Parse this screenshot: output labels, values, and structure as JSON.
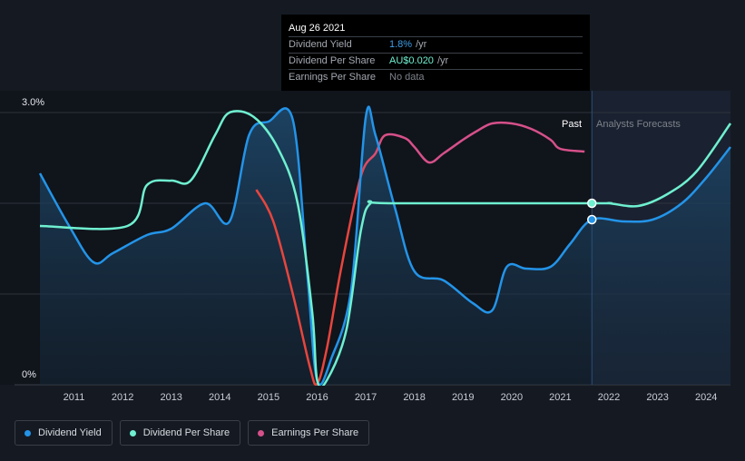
{
  "tooltip": {
    "date": "Aug 26 2021",
    "rows": [
      {
        "label": "Dividend Yield",
        "value": "1.8%",
        "unit": "/yr"
      },
      {
        "label": "Dividend Per Share",
        "value": "AU$0.020",
        "unit": "/yr"
      },
      {
        "label": "Earnings Per Share",
        "value": "No data",
        "unit": ""
      }
    ]
  },
  "colors": {
    "yield": "#2394e8",
    "dps": "#6ff0d0",
    "eps_pos": "#d6508a",
    "eps_neg": "#e8453d",
    "background": "#151a22"
  },
  "legend": [
    {
      "label": "Dividend Yield",
      "color": "#2394e8"
    },
    {
      "label": "Dividend Per Share",
      "color": "#6ff0d0"
    },
    {
      "label": "Earnings Per Share",
      "color": "#d6508a"
    }
  ],
  "chart_data": {
    "type": "line",
    "ylim": [
      0,
      3.0
    ],
    "y_tick_labels": [
      "3.0%",
      "0%"
    ],
    "xlim": [
      2010.3,
      2024.5
    ],
    "x_ticks": [
      2011,
      2012,
      2013,
      2014,
      2015,
      2016,
      2017,
      2018,
      2019,
      2020,
      2021,
      2022,
      2023,
      2024
    ],
    "past_label": "Past",
    "forecast_label": "Analysts Forecasts",
    "past_forecast_boundary": 2021.65,
    "series": [
      {
        "name": "Dividend Yield",
        "x": [
          2010.3,
          2010.9,
          2011.4,
          2011.8,
          2012.5,
          2013.0,
          2013.7,
          2014.2,
          2014.6,
          2015.0,
          2015.5,
          2015.8,
          2016.0,
          2016.3,
          2016.7,
          2017.0,
          2017.2,
          2017.6,
          2018.0,
          2018.6,
          2019.2,
          2019.6,
          2019.9,
          2020.3,
          2020.8,
          2021.2,
          2021.65,
          2022.3,
          2022.9,
          2023.5,
          2024.0,
          2024.5
        ],
        "y": [
          2.33,
          1.75,
          1.35,
          1.45,
          1.65,
          1.72,
          2.0,
          1.8,
          2.75,
          2.9,
          2.92,
          1.2,
          0.05,
          0.3,
          1.05,
          2.95,
          2.75,
          1.95,
          1.25,
          1.15,
          0.9,
          0.82,
          1.3,
          1.28,
          1.3,
          1.55,
          1.82,
          1.8,
          1.82,
          2.0,
          2.28,
          2.62
        ]
      },
      {
        "name": "Dividend Per Share",
        "x": [
          2010.3,
          2012.1,
          2012.5,
          2013.0,
          2013.4,
          2013.9,
          2014.2,
          2014.7,
          2015.2,
          2015.6,
          2015.9,
          2016.0,
          2016.2,
          2016.6,
          2016.9,
          2017.1,
          2017.5,
          2021.65,
          2022.0,
          2022.6,
          2023.2,
          2023.8,
          2024.5
        ],
        "y": [
          1.75,
          1.75,
          2.2,
          2.25,
          2.25,
          2.75,
          3.0,
          2.95,
          2.6,
          2.0,
          0.8,
          0.05,
          0.05,
          0.6,
          1.7,
          2.0,
          2.0,
          2.0,
          2.0,
          1.97,
          2.1,
          2.35,
          2.88
        ]
      },
      {
        "name": "Earnings Per Share",
        "x": [
          2014.75,
          2015.1,
          2015.5,
          2015.85,
          2016.0,
          2016.2,
          2016.5,
          2016.9,
          2017.2,
          2017.4,
          2017.8,
          2018.0,
          2018.3,
          2018.6,
          2019.0,
          2019.3,
          2019.6,
          2020.0,
          2020.4,
          2020.8,
          2021.0,
          2021.5
        ],
        "y": [
          2.15,
          1.8,
          1.0,
          0.2,
          0.01,
          0.4,
          1.3,
          2.3,
          2.55,
          2.75,
          2.72,
          2.62,
          2.45,
          2.55,
          2.7,
          2.8,
          2.88,
          2.88,
          2.82,
          2.7,
          2.6,
          2.57
        ]
      }
    ]
  }
}
